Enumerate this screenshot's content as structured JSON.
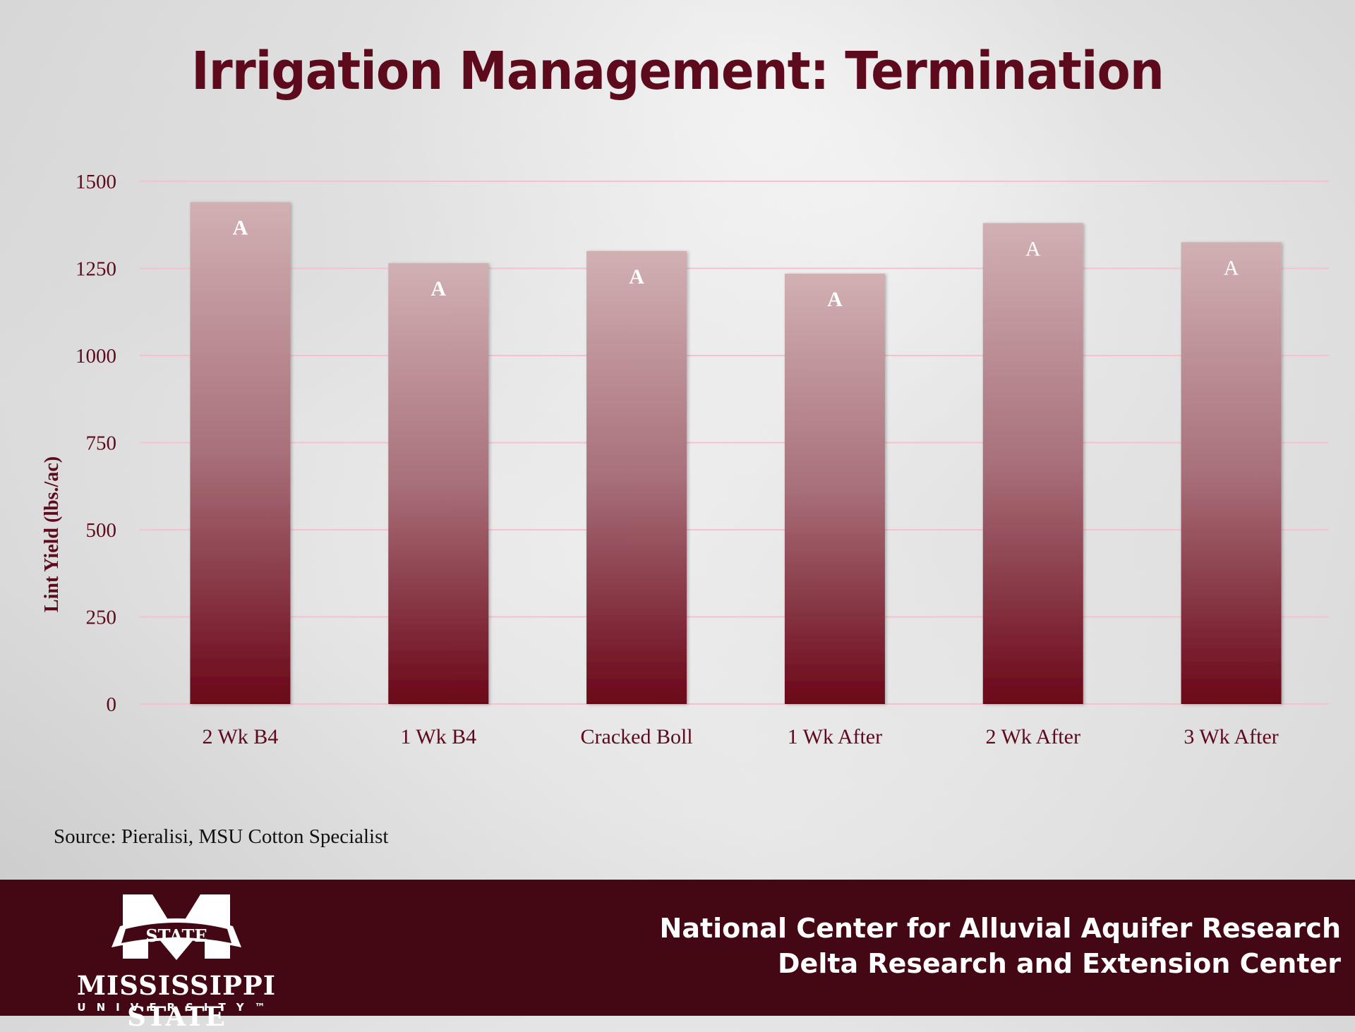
{
  "slide": {
    "title": "Irrigation Management: Termination",
    "source": "Source: Pieralisi, MSU Cotton Specialist"
  },
  "footer": {
    "logo": {
      "emblem_text": "STATE",
      "name": "MISSISSIPPI STATE",
      "subtitle": "UNIVERSITY™"
    },
    "lines": [
      "National Center for Alluvial Aquifer Research",
      "Delta Research and Extension Center"
    ],
    "background_color": "#440814"
  },
  "chart_data": {
    "type": "bar",
    "title": "Irrigation Management: Termination",
    "xlabel": "",
    "ylabel": "Lint Yield (lbs./ac)",
    "categories": [
      "2 Wk B4",
      "1 Wk B4",
      "Cracked Boll",
      "1 Wk After",
      "2 Wk After",
      "3 Wk After"
    ],
    "values": [
      1440,
      1265,
      1300,
      1235,
      1380,
      1325
    ],
    "data_labels": [
      "A",
      "A",
      "A",
      "A",
      "A",
      "A"
    ],
    "ylim": [
      0,
      1500
    ],
    "yticks": [
      0,
      250,
      500,
      750,
      1000,
      1250,
      1500
    ],
    "grid": true,
    "legend": "none",
    "colors": {
      "bar_top": "#d1b0b3",
      "bar_bottom": "#6b0618",
      "grid": "#f4c2cc",
      "text": "#5e0a1d"
    }
  }
}
